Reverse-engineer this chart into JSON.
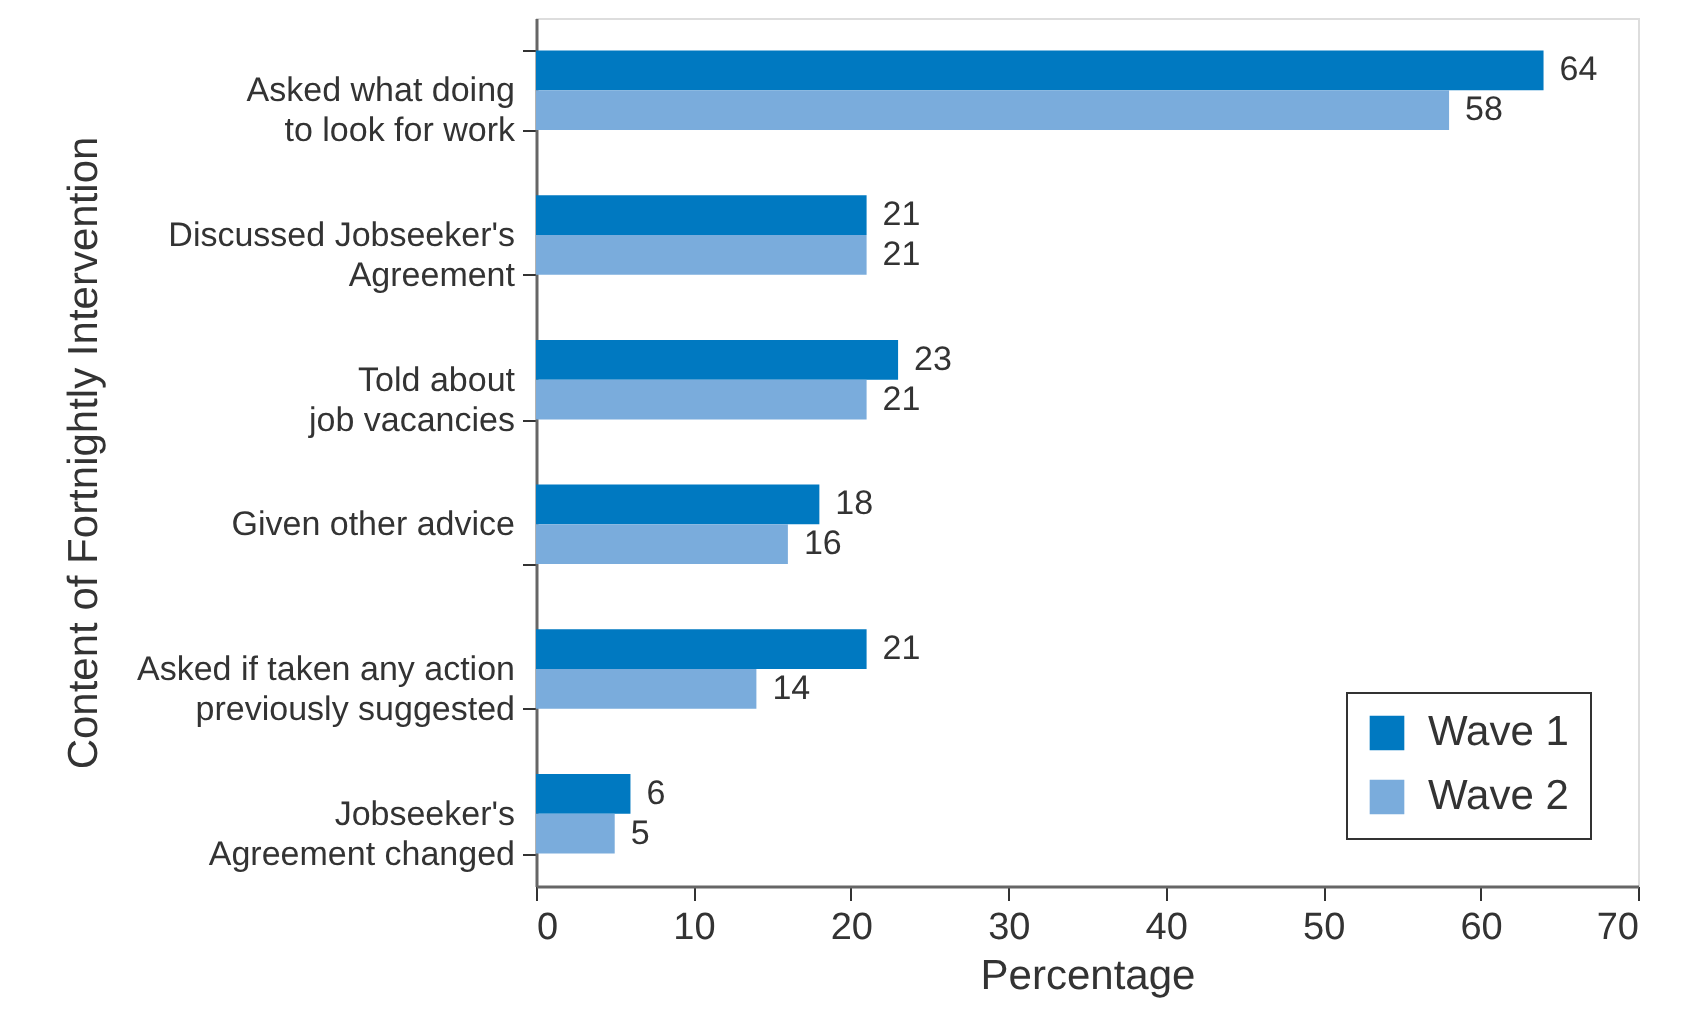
{
  "chart_data": {
    "type": "bar",
    "orientation": "horizontal",
    "xlabel": "Percentage",
    "ylabel": "Content of Fortnightly Intervention",
    "categories": [
      "Asked what doing\nto look for work",
      "Discussed Jobseeker's\nAgreement",
      "Told about\njob vacancies",
      "Given other advice",
      "Asked if taken any action\npreviously suggested",
      "Jobseeker's\nAgreement changed"
    ],
    "series": [
      {
        "name": "Wave 1",
        "color": "#0079c1",
        "values": [
          64,
          21,
          23,
          18,
          21,
          6
        ]
      },
      {
        "name": "Wave 2",
        "color": "#7aacdc",
        "values": [
          58,
          21,
          21,
          16,
          14,
          5
        ]
      }
    ],
    "xlim": [
      0,
      70
    ],
    "xticks": [
      0,
      10,
      20,
      30,
      40,
      50,
      60,
      70
    ],
    "data_labels": true,
    "legend": "bottom right",
    "grid": false
  }
}
